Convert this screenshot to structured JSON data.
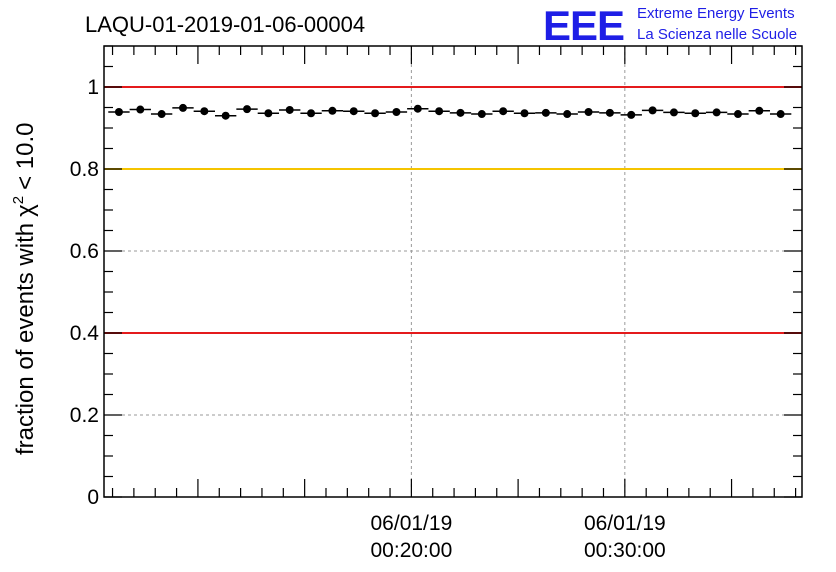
{
  "header": {
    "run_title": "LAQU-01-2019-01-06-00004",
    "logo_letters": "EEE",
    "logo_line1": "Extreme Energy Events",
    "logo_line2": "La Scienza nelle Scuole"
  },
  "colors": {
    "logo": "#1e1ee6",
    "red_line": "#e41a1c",
    "yellow_line": "#f5c400",
    "marker": "#000000",
    "grid": "#9a9a9a"
  },
  "chart_data": {
    "type": "scatter",
    "title": "LAQU-01-2019-01-06-00004",
    "xlabel": "",
    "ylabel": "fraction of events with",
    "ylabel_symbol": "χ",
    "ylabel_superscript": "2",
    "ylabel_suffix": "< 10.0",
    "xlim": [
      5.6,
      38.3
    ],
    "ylim": [
      0,
      1.1
    ],
    "x_unit": "minutes after 06/01/19 00:00:00",
    "bin_half_width": 0.5,
    "grid": true,
    "y_ticks": [
      {
        "value": 0,
        "label": "0"
      },
      {
        "value": 0.2,
        "label": "0.2"
      },
      {
        "value": 0.4,
        "label": "0.4"
      },
      {
        "value": 0.6,
        "label": "0.6"
      },
      {
        "value": 0.8,
        "label": "0.8"
      },
      {
        "value": 1.0,
        "label": "1"
      }
    ],
    "x_ticks": [
      {
        "value": 20,
        "date": "06/01/19",
        "time": "00:20:00"
      },
      {
        "value": 30,
        "date": "06/01/19",
        "time": "00:30:00"
      }
    ],
    "reference_lines": [
      {
        "name": "upper-red",
        "y": 1.0,
        "color": "#e41a1c"
      },
      {
        "name": "yellow",
        "y": 0.8,
        "color": "#f5c400"
      },
      {
        "name": "lower-red",
        "y": 0.4,
        "color": "#e41a1c"
      }
    ],
    "series": [
      {
        "name": "chi2 fraction",
        "x": [
          6.3,
          7.3,
          8.3,
          9.3,
          10.3,
          11.3,
          12.3,
          13.3,
          14.3,
          15.3,
          16.3,
          17.3,
          18.3,
          19.3,
          20.3,
          21.3,
          22.3,
          23.3,
          24.3,
          25.3,
          26.3,
          27.3,
          28.3,
          29.3,
          30.3,
          31.3,
          32.3,
          33.3,
          34.3,
          35.3,
          36.3,
          37.3
        ],
        "values": [
          0.939,
          0.945,
          0.934,
          0.949,
          0.941,
          0.93,
          0.946,
          0.936,
          0.944,
          0.936,
          0.942,
          0.941,
          0.936,
          0.939,
          0.947,
          0.941,
          0.937,
          0.934,
          0.941,
          0.936,
          0.937,
          0.934,
          0.939,
          0.937,
          0.932,
          0.943,
          0.938,
          0.936,
          0.938,
          0.934,
          0.942,
          0.934
        ],
        "marker": "circle"
      }
    ]
  }
}
